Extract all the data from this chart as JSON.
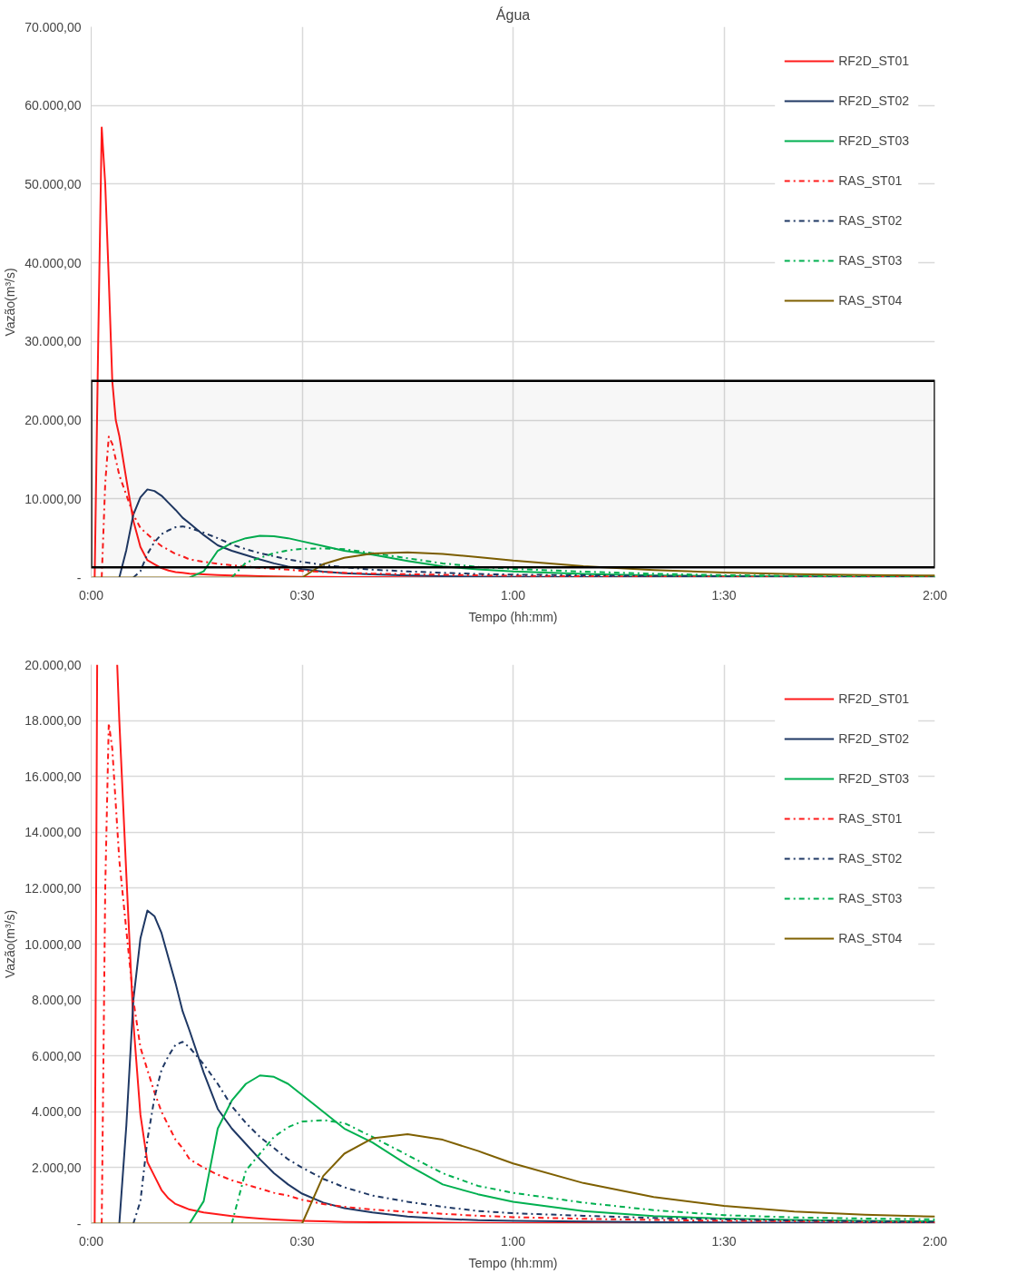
{
  "chart_data": [
    {
      "type": "line",
      "title": "Água",
      "xlabel": "Tempo (hh:mm)",
      "ylabel": "Vazão(m³/s)",
      "x": [
        0,
        0.0083,
        0.0167,
        0.025,
        0.0333,
        0.0417,
        0.05,
        0.0583,
        0.0667,
        0.0833,
        0.1,
        0.1167,
        0.1333,
        0.15,
        0.1667,
        0.1833,
        0.2,
        0.2167,
        0.2333,
        0.2667,
        0.3,
        0.3333,
        0.3667,
        0.4,
        0.4333,
        0.4667,
        0.5,
        0.55,
        0.6,
        0.6667,
        0.75,
        0.8333,
        0.9167,
        1,
        1.1667,
        1.3333,
        1.5,
        1.6667,
        1.8333,
        2
      ],
      "xlim": [
        0,
        2
      ],
      "xticks": [
        {
          "value": 0,
          "label": "0:00"
        },
        {
          "value": 0.5,
          "label": "0:30"
        },
        {
          "value": 1,
          "label": "1:00"
        },
        {
          "value": 1.5,
          "label": "1:30"
        },
        {
          "value": 2,
          "label": "2:00"
        }
      ],
      "ylim": [
        0,
        70000
      ],
      "yticks": [
        {
          "value": 0,
          "label": "-"
        },
        {
          "value": 10000,
          "label": "10.000,00"
        },
        {
          "value": 20000,
          "label": "20.000,00"
        },
        {
          "value": 30000,
          "label": "30.000,00"
        },
        {
          "value": 40000,
          "label": "40.000,00"
        },
        {
          "value": 50000,
          "label": "50.000,00"
        },
        {
          "value": 60000,
          "label": "60.000,00"
        },
        {
          "value": 70000,
          "label": "70.000,00"
        }
      ],
      "grid": true,
      "legend": "top right",
      "bands": [
        {
          "axis": "y",
          "from": 1300,
          "to": 25000,
          "color": "#000000"
        }
      ],
      "series": [
        {
          "name": "RF2D_ST01",
          "color": "#ff1a1a",
          "line_style": "solid",
          "values": [
            null,
            0,
            30000,
            57200,
            50000,
            38000,
            25000,
            20000,
            18000,
            12500,
            7200,
            3900,
            2200,
            1700,
            1200,
            900,
            700,
            600,
            500,
            400,
            330,
            270,
            220,
            180,
            150,
            120,
            100,
            80,
            60,
            50,
            40,
            30,
            25,
            20,
            15,
            10,
            8,
            5,
            null,
            null
          ]
        },
        {
          "name": "RF2D_ST02",
          "color": "#1f3864",
          "line_style": "solid",
          "values": [
            null,
            null,
            null,
            null,
            null,
            null,
            null,
            null,
            0,
            3500,
            8000,
            10200,
            11200,
            11000,
            10400,
            9500,
            8600,
            7600,
            6900,
            5400,
            4100,
            3400,
            2850,
            2300,
            1800,
            1400,
            1070,
            750,
            550,
            400,
            250,
            170,
            120,
            100,
            70,
            50,
            40,
            30,
            25,
            20
          ]
        },
        {
          "name": "RF2D_ST03",
          "color": "#00b050",
          "line_style": "solid",
          "values": [
            null,
            null,
            null,
            null,
            null,
            null,
            null,
            null,
            null,
            null,
            null,
            null,
            null,
            null,
            null,
            null,
            null,
            null,
            0,
            800,
            3400,
            4400,
            5000,
            5300,
            5250,
            5000,
            4600,
            4000,
            3400,
            2900,
            2100,
            1400,
            1050,
            780,
            450,
            270,
            180,
            130,
            100,
            80
          ]
        },
        {
          "name": "RAS_ST01",
          "color": "#ff1a1a",
          "line_style": "dashdot",
          "values": [
            null,
            null,
            null,
            0,
            12000,
            17900,
            17000,
            15000,
            13000,
            10500,
            8000,
            6300,
            5500,
            4700,
            4000,
            3500,
            3000,
            2700,
            2300,
            2000,
            1750,
            1550,
            1400,
            1250,
            1100,
            1000,
            850,
            700,
            600,
            500,
            420,
            350,
            280,
            230,
            170,
            130,
            100,
            80,
            60,
            50
          ]
        },
        {
          "name": "RAS_ST02",
          "color": "#1f3864",
          "line_style": "dashdot",
          "values": [
            null,
            null,
            null,
            null,
            null,
            null,
            null,
            null,
            null,
            null,
            0,
            800,
            3000,
            4500,
            5500,
            6000,
            6400,
            6500,
            6300,
            5700,
            5000,
            4200,
            3600,
            3100,
            2700,
            2300,
            2000,
            1600,
            1300,
            1000,
            780,
            600,
            450,
            370,
            280,
            200,
            150,
            110,
            80,
            60
          ]
        },
        {
          "name": "RAS_ST03",
          "color": "#00b050",
          "line_style": "dashdot",
          "values": [
            null,
            null,
            null,
            null,
            null,
            null,
            null,
            null,
            null,
            null,
            null,
            null,
            null,
            null,
            null,
            null,
            null,
            null,
            null,
            null,
            null,
            0,
            1900,
            2500,
            3100,
            3450,
            3650,
            3700,
            3600,
            3100,
            2450,
            1800,
            1350,
            1100,
            750,
            480,
            300,
            220,
            180,
            150
          ]
        },
        {
          "name": "RAS_ST04",
          "color": "#7f6000",
          "line_style": "solid",
          "values": [
            0,
            0,
            0,
            0,
            0,
            0,
            0,
            0,
            0,
            0,
            0,
            0,
            0,
            0,
            0,
            0,
            0,
            0,
            0,
            0,
            0,
            0,
            0,
            0,
            0,
            0,
            0,
            1700,
            2500,
            3050,
            3200,
            3000,
            2600,
            2150,
            1450,
            950,
            630,
            430,
            320,
            250
          ]
        }
      ]
    },
    {
      "type": "line",
      "xlabel": "Tempo (hh:mm)",
      "ylabel": "Vazão(m³/s)",
      "x": [
        0,
        0.0083,
        0.0167,
        0.025,
        0.0333,
        0.0417,
        0.05,
        0.0583,
        0.0667,
        0.0833,
        0.1,
        0.1167,
        0.1333,
        0.15,
        0.1667,
        0.1833,
        0.2,
        0.2167,
        0.2333,
        0.2667,
        0.3,
        0.3333,
        0.3667,
        0.4,
        0.4333,
        0.4667,
        0.5,
        0.55,
        0.6,
        0.6667,
        0.75,
        0.8333,
        0.9167,
        1,
        1.1667,
        1.3333,
        1.5,
        1.6667,
        1.8333,
        2
      ],
      "xlim": [
        0,
        2
      ],
      "xticks": [
        {
          "value": 0,
          "label": "0:00"
        },
        {
          "value": 0.5,
          "label": "0:30"
        },
        {
          "value": 1,
          "label": "1:00"
        },
        {
          "value": 1.5,
          "label": "1:30"
        },
        {
          "value": 2,
          "label": "2:00"
        }
      ],
      "ylim": [
        0,
        20000
      ],
      "yticks": [
        {
          "value": 0,
          "label": "-"
        },
        {
          "value": 2000,
          "label": "2.000,00"
        },
        {
          "value": 4000,
          "label": "4.000,00"
        },
        {
          "value": 6000,
          "label": "6.000,00"
        },
        {
          "value": 8000,
          "label": "8.000,00"
        },
        {
          "value": 10000,
          "label": "10.000,00"
        },
        {
          "value": 12000,
          "label": "12.000,00"
        },
        {
          "value": 14000,
          "label": "14.000,00"
        },
        {
          "value": 16000,
          "label": "16.000,00"
        },
        {
          "value": 18000,
          "label": "18.000,00"
        },
        {
          "value": 20000,
          "label": "20.000,00"
        }
      ],
      "grid": true,
      "legend": "top right",
      "series": [
        {
          "name": "RF2D_ST01",
          "color": "#ff1a1a",
          "line_style": "solid",
          "x": [
            0.0083,
            0.0142,
            0.03,
            0.0617,
            0.0667,
            0.0833,
            0.1,
            0.1167,
            0.1333,
            0.15,
            0.1667,
            0.1833,
            0.2,
            0.2167,
            0.2333,
            0.2667,
            0.3,
            0.3333,
            0.3667,
            0.4,
            0.4333,
            0.4667,
            0.5,
            0.55,
            0.6,
            0.6667,
            0.75,
            0.8333,
            0.9167,
            1,
            1.1667,
            1.3333,
            1.5,
            1.6667
          ],
          "values": [
            0,
            20000,
            null,
            20000,
            18000,
            12500,
            7200,
            3900,
            2200,
            1700,
            1200,
            900,
            700,
            600,
            500,
            400,
            330,
            270,
            220,
            180,
            150,
            120,
            100,
            80,
            60,
            50,
            40,
            30,
            25,
            20,
            15,
            10,
            8,
            5
          ]
        },
        {
          "name": "RF2D_ST02",
          "color": "#1f3864",
          "line_style": "solid",
          "values": [
            null,
            null,
            null,
            null,
            null,
            null,
            null,
            null,
            0,
            3500,
            8000,
            10200,
            11200,
            11000,
            10400,
            9500,
            8600,
            7600,
            6900,
            5400,
            4100,
            3400,
            2850,
            2300,
            1800,
            1400,
            1070,
            750,
            550,
            400,
            250,
            170,
            120,
            100,
            70,
            50,
            40,
            30,
            25,
            20
          ]
        },
        {
          "name": "RF2D_ST03",
          "color": "#00b050",
          "line_style": "solid",
          "values": [
            null,
            null,
            null,
            null,
            null,
            null,
            null,
            null,
            null,
            null,
            null,
            null,
            null,
            null,
            null,
            null,
            null,
            null,
            0,
            800,
            3400,
            4400,
            5000,
            5300,
            5250,
            5000,
            4600,
            4000,
            3400,
            2900,
            2100,
            1400,
            1050,
            780,
            450,
            270,
            180,
            130,
            100,
            80
          ]
        },
        {
          "name": "RAS_ST01",
          "color": "#ff1a1a",
          "line_style": "dashdot",
          "values": [
            null,
            null,
            null,
            0,
            12000,
            17900,
            17000,
            15000,
            13000,
            10500,
            8000,
            6300,
            5500,
            4700,
            4000,
            3500,
            3000,
            2700,
            2300,
            2000,
            1750,
            1550,
            1400,
            1250,
            1100,
            1000,
            850,
            700,
            600,
            500,
            420,
            350,
            280,
            230,
            170,
            130,
            100,
            80,
            60,
            50
          ]
        },
        {
          "name": "RAS_ST02",
          "color": "#1f3864",
          "line_style": "dashdot",
          "values": [
            null,
            null,
            null,
            null,
            null,
            null,
            null,
            null,
            null,
            null,
            0,
            800,
            3000,
            4500,
            5500,
            6000,
            6400,
            6500,
            6300,
            5700,
            5000,
            4200,
            3600,
            3100,
            2700,
            2300,
            2000,
            1600,
            1300,
            1000,
            780,
            600,
            450,
            370,
            280,
            200,
            150,
            110,
            80,
            60
          ]
        },
        {
          "name": "RAS_ST03",
          "color": "#00b050",
          "line_style": "dashdot",
          "values": [
            null,
            null,
            null,
            null,
            null,
            null,
            null,
            null,
            null,
            null,
            null,
            null,
            null,
            null,
            null,
            null,
            null,
            null,
            null,
            null,
            null,
            0,
            1900,
            2500,
            3100,
            3450,
            3650,
            3700,
            3600,
            3100,
            2450,
            1800,
            1350,
            1100,
            750,
            480,
            300,
            220,
            180,
            150
          ]
        },
        {
          "name": "RAS_ST04",
          "color": "#7f6000",
          "line_style": "solid",
          "values": [
            0,
            0,
            0,
            0,
            0,
            0,
            0,
            0,
            0,
            0,
            0,
            0,
            0,
            0,
            0,
            0,
            0,
            0,
            0,
            0,
            0,
            0,
            0,
            0,
            0,
            0,
            0,
            1700,
            2500,
            3050,
            3200,
            3000,
            2600,
            2150,
            1450,
            950,
            630,
            430,
            320,
            250
          ]
        }
      ]
    }
  ]
}
